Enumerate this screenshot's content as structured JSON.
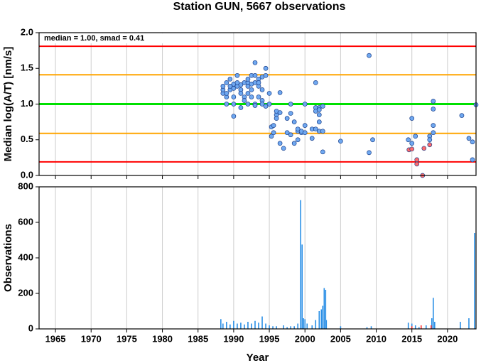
{
  "chart_data": [
    {
      "type": "scatter",
      "title": "Station GUN, 5667 observations",
      "ylabel": "Median log(A/T) [nm/s]",
      "annotation": "median = 1.00, smad = 0.41",
      "xlim": [
        1962.7,
        2024
      ],
      "xticks": [
        1965,
        1970,
        1975,
        1980,
        1985,
        1990,
        1995,
        2000,
        2005,
        2010,
        2015,
        2020
      ],
      "ylim": [
        0,
        2
      ],
      "yticks": [
        {
          "value": 0,
          "label": "0.0"
        },
        {
          "value": 0.5,
          "label": "0.5"
        },
        {
          "value": 1,
          "label": "1.0"
        },
        {
          "value": 1.5,
          "label": "1.5"
        },
        {
          "value": 2,
          "label": "2.0"
        }
      ],
      "grid": true,
      "hlines": [
        {
          "value": 1.81,
          "color": "#ff0000"
        },
        {
          "value": 1.41,
          "color": "#ffa500"
        },
        {
          "value": 1.0,
          "color": "#00e000"
        },
        {
          "value": 0.59,
          "color": "#ffa500"
        },
        {
          "value": 0.19,
          "color": "#ff0000"
        }
      ],
      "series": [
        {
          "color": "#6fa8f0",
          "x": [
            1988.5,
            1988.5,
            1988.5,
            1989,
            1989,
            1989,
            1989,
            1989.5,
            1989.5,
            1989.5,
            1990,
            1990,
            1990,
            1990,
            1990,
            1990.5,
            1990.5,
            1990.5,
            1991,
            1991,
            1991,
            1991,
            1991.5,
            1991.5,
            1991.5,
            1992,
            1992,
            1992,
            1992,
            1992,
            1992.5,
            1992.5,
            1992.5,
            1992.5,
            1993,
            1993,
            1993,
            1993,
            1993,
            1993.5,
            1993.5,
            1993.5,
            1993.5,
            1994,
            1994,
            1994,
            1994,
            1994.5,
            1994.5,
            1994.5,
            1995,
            1995,
            1995.3,
            1995.3,
            1995.6,
            1995.6,
            1996,
            1996,
            1996,
            1996.5,
            1996.5,
            1996.5,
            1997,
            1997.5,
            1997.5,
            1998,
            1998,
            1998,
            1998.5,
            1998.5,
            1999,
            1999,
            1999,
            1999.5,
            1999.5,
            2000,
            2000,
            2000,
            2001,
            2001,
            2001.5,
            2001.5,
            2001.5,
            2001.5,
            2002,
            2002,
            2002,
            2002,
            2002,
            2002.5,
            2002.5,
            2002.5,
            2005,
            2009,
            2009,
            2009.5,
            2014.5,
            2015,
            2015,
            2015.5,
            2017.5,
            2017.5,
            2018,
            2018,
            2018,
            2018,
            2022,
            2023,
            2023.5,
            2023.5,
            2024
          ],
          "values": [
            1.15,
            1.2,
            1.25,
            1.1,
            1.3,
            1.0,
            1.15,
            1.35,
            1.2,
            1.25,
            1.28,
            1.22,
            0.83,
            1.0,
            1.1,
            1.4,
            1.25,
            1.3,
            1.2,
            1.15,
            1.27,
            0.95,
            1.3,
            1.1,
            1.05,
            1.3,
            1.25,
            1.35,
            1.15,
            1.0,
            1.4,
            1.28,
            1.2,
            1.1,
            1.4,
            1.58,
            1.3,
            1.0,
            0.98,
            1.35,
            1.25,
            1.1,
            1.3,
            1.38,
            1.2,
            1.05,
            1.0,
            1.5,
            1.4,
            0.97,
            1.15,
            1.0,
            0.68,
            0.55,
            0.7,
            0.6,
            0.85,
            0.9,
            0.8,
            0.45,
            1.16,
            0.88,
            0.38,
            0.6,
            0.8,
            0.57,
            1.0,
            0.87,
            0.45,
            0.75,
            0.5,
            0.62,
            0.65,
            0.6,
            0.62,
            0.7,
            1.0,
            0.6,
            0.52,
            0.65,
            0.95,
            0.9,
            1.3,
            0.65,
            0.95,
            0.92,
            0.85,
            0.75,
            0.62,
            0.97,
            0.33,
            0.62,
            0.48,
            1.68,
            0.32,
            0.5,
            0.5,
            0.45,
            0.8,
            0.55,
            0.55,
            0.5,
            0.93,
            1.04,
            0.6,
            0.7,
            0.84,
            0.52,
            0.47,
            0.22,
            0.99
          ]
        },
        {
          "color": "#ff6b6b",
          "x": [
            2014.6,
            2015,
            2015.7,
            2015.7,
            2016.5,
            2016.7,
            2017.5
          ],
          "values": [
            0.36,
            0.37,
            0.22,
            0.16,
            0.0,
            0.38,
            0.43
          ]
        }
      ]
    },
    {
      "type": "bar",
      "ylabel": "Observations",
      "xlabel": "Year",
      "xlim": [
        1962.7,
        2024
      ],
      "xticks": [
        1965,
        1970,
        1975,
        1980,
        1985,
        1990,
        1995,
        2000,
        2005,
        2010,
        2015,
        2020
      ],
      "ylim": [
        0,
        800
      ],
      "yticks": [
        0,
        200,
        400,
        600,
        800
      ],
      "grid": true,
      "series": [
        {
          "color": "#2a8fe6",
          "x": [
            1988.2,
            1988.5,
            1989,
            1989.5,
            1990,
            1990.5,
            1991,
            1991.5,
            1992,
            1992.5,
            1993,
            1993.5,
            1994,
            1994.5,
            1995,
            1995.5,
            1996,
            1997,
            1997.5,
            1998,
            1998.5,
            1999,
            1999.4,
            1999.6,
            1999.8,
            2000,
            2000.3,
            2001,
            2001.5,
            2002,
            2002.3,
            2002.5,
            2002.7,
            2002.9,
            2003,
            2005,
            2008.7,
            2009.3,
            2014.5,
            2015,
            2015.5,
            2016,
            2017,
            2017.8,
            2018,
            2018.2,
            2021.8,
            2023,
            2023.8
          ],
          "values": [
            55,
            30,
            40,
            25,
            45,
            30,
            35,
            25,
            40,
            30,
            45,
            35,
            70,
            30,
            20,
            15,
            15,
            20,
            10,
            15,
            15,
            30,
            725,
            475,
            60,
            55,
            30,
            20,
            50,
            100,
            110,
            130,
            230,
            220,
            50,
            15,
            10,
            15,
            35,
            30,
            20,
            10,
            20,
            60,
            175,
            40,
            40,
            60,
            540
          ]
        },
        {
          "color": "#ff3030",
          "x": [
            2015,
            2016.3,
            2017.7
          ],
          "values": [
            15,
            20,
            20
          ]
        }
      ]
    }
  ]
}
